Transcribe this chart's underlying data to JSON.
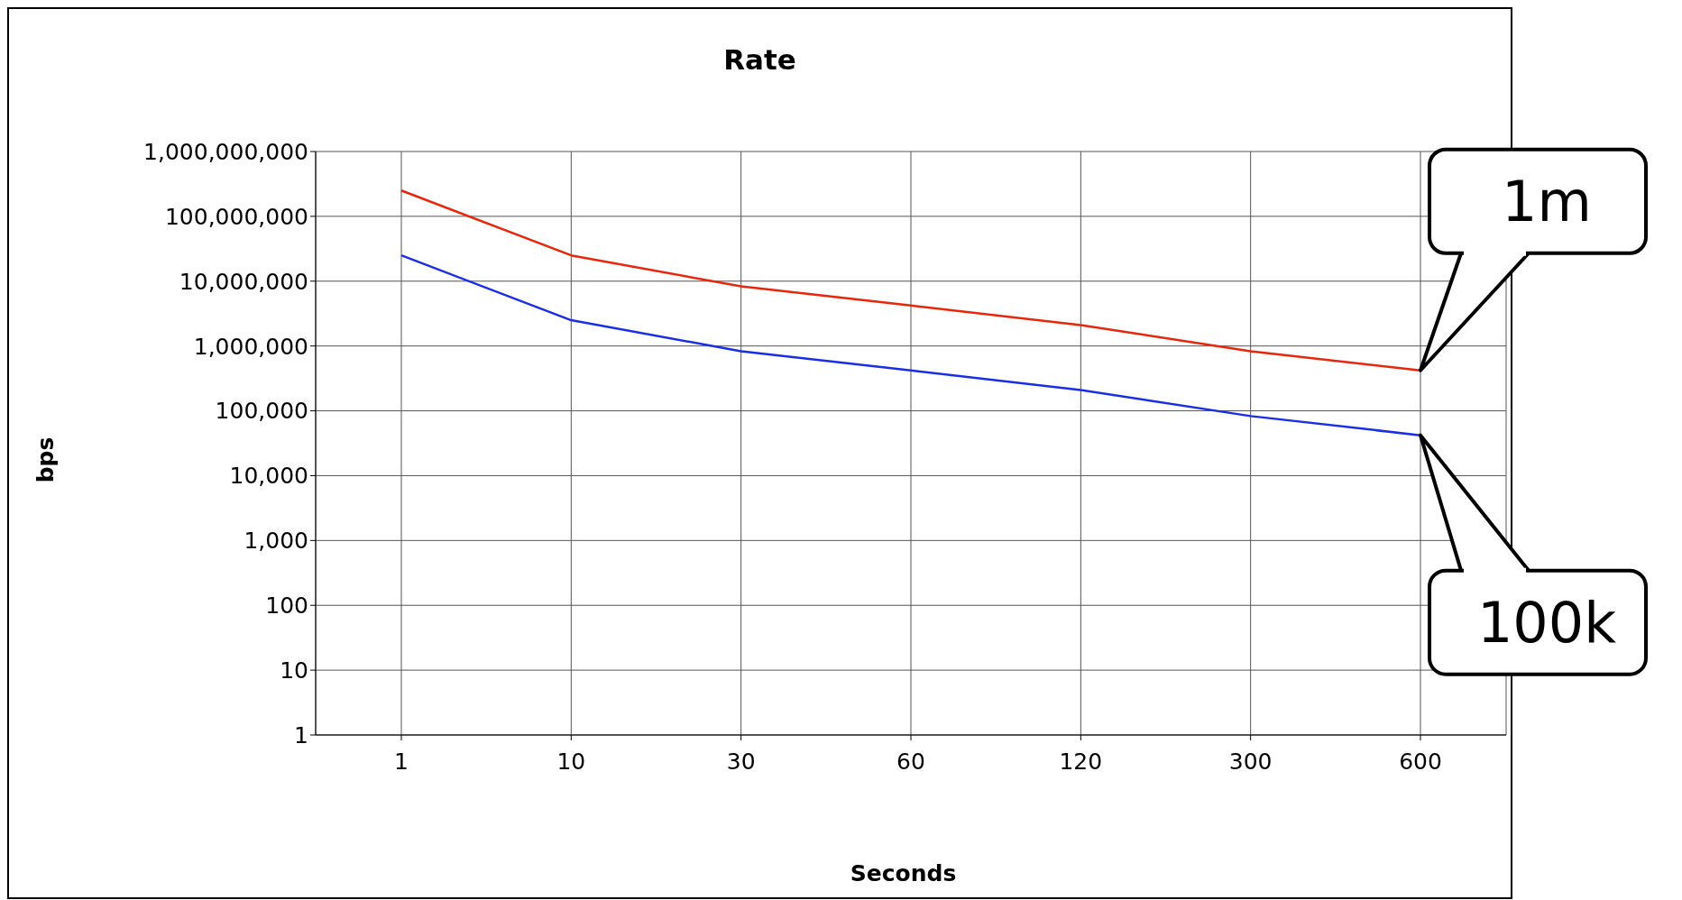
{
  "chart_data": {
    "type": "line",
    "title": "Rate",
    "xlabel": "Seconds",
    "ylabel": "bps",
    "categories": [
      "1",
      "10",
      "30",
      "60",
      "120",
      "300",
      "600"
    ],
    "series": [
      {
        "color": "#e8260c",
        "values": [
          250000000,
          25000000,
          8300000,
          4200000,
          2100000,
          830000,
          420000
        ]
      },
      {
        "color": "#1a2ee6",
        "values": [
          25000000,
          2500000,
          830000,
          420000,
          210000,
          83000,
          42000
        ]
      }
    ],
    "log": true,
    "ylim": [
      1,
      1000000000
    ],
    "yticks": [
      1,
      10,
      100,
      {
        "value": 1000,
        "label": "1,000"
      },
      {
        "value": 10000,
        "label": "10,000"
      },
      {
        "value": 100000,
        "label": "100,000"
      },
      {
        "value": 1000000,
        "label": "1,000,000"
      },
      {
        "value": 10000000,
        "label": "10,000,000"
      },
      {
        "value": 100000000,
        "label": "100,000,000"
      },
      {
        "value": 1000000000,
        "label": "1,000,000,000"
      }
    ],
    "grid": true,
    "legend": false,
    "marker": "none",
    "line_style": "solid",
    "annotations": [
      {
        "text": "1m",
        "x": "600",
        "y": 420000
      },
      {
        "text": "100k",
        "x": "600",
        "y": 42000
      }
    ]
  }
}
